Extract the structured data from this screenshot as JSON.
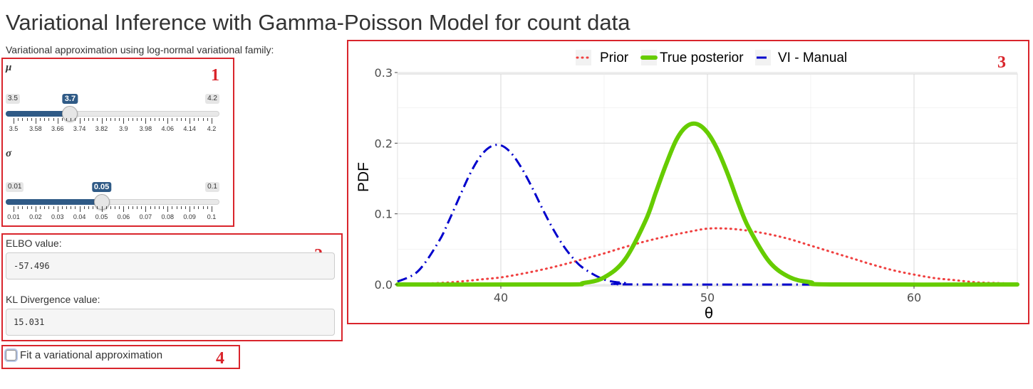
{
  "page": {
    "title": "Variational Inference with Gamma-Poisson Model for count data",
    "subtitle": "Variational approximation using log-normal variational family:"
  },
  "annotations": [
    "1",
    "2",
    "3",
    "4"
  ],
  "sliders": {
    "mu": {
      "label": "μ",
      "min": 3.5,
      "max": 4.2,
      "value": 3.7,
      "min_label": "3.5",
      "max_label": "4.2",
      "value_label": "3.7",
      "tick_labels": [
        "3.5",
        "3.58",
        "3.66",
        "3.74",
        "3.82",
        "3.9",
        "3.98",
        "4.06",
        "4.14",
        "4.2"
      ]
    },
    "sigma": {
      "label": "σ",
      "min": 0.01,
      "max": 0.1,
      "value": 0.05,
      "min_label": "0.01",
      "max_label": "0.1",
      "value_label": "0.05",
      "tick_labels": [
        "0.01",
        "0.02",
        "0.03",
        "0.04",
        "0.05",
        "0.06",
        "0.07",
        "0.08",
        "0.09",
        "0.1"
      ]
    }
  },
  "outputs": {
    "elbo_label": "ELBO value:",
    "elbo_value": "-57.496",
    "kl_label": "KL Divergence value:",
    "kl_value": "15.031"
  },
  "checkbox": {
    "label": "Fit a variational approximation",
    "checked": false
  },
  "chart_data": {
    "type": "line",
    "title": "",
    "xlabel": "θ",
    "ylabel": "PDF",
    "xlim": [
      35,
      65
    ],
    "ylim": [
      0,
      0.3
    ],
    "x_ticks": [
      40,
      50,
      60
    ],
    "y_ticks": [
      0.0,
      0.1,
      0.2,
      0.3
    ],
    "x_tick_labels": [
      "40",
      "50",
      "60"
    ],
    "y_tick_labels": [
      "0.0",
      "0.1",
      "0.2",
      "0.3"
    ],
    "grid": true,
    "legend_position": "top",
    "series": [
      {
        "name": "Prior",
        "color": "#f04040",
        "style": "dotted",
        "x": [
          35,
          36,
          37,
          38,
          39,
          40,
          41,
          42,
          43,
          44,
          45,
          46,
          47,
          48,
          49,
          50,
          51,
          52,
          53,
          54,
          55,
          56,
          57,
          58,
          59,
          60,
          61,
          62,
          63,
          64,
          65
        ],
        "y": [
          0.0,
          0.001,
          0.002,
          0.004,
          0.007,
          0.01,
          0.015,
          0.021,
          0.028,
          0.036,
          0.044,
          0.053,
          0.061,
          0.068,
          0.074,
          0.079,
          0.079,
          0.076,
          0.071,
          0.064,
          0.055,
          0.046,
          0.037,
          0.028,
          0.02,
          0.014,
          0.009,
          0.006,
          0.003,
          0.002,
          0.001
        ]
      },
      {
        "name": "True posterior",
        "color": "#66cc00",
        "style": "solid",
        "x": [
          35,
          43,
          44,
          45,
          46,
          47,
          47.5,
          48,
          48.5,
          49,
          49.5,
          50,
          50.5,
          51,
          51.5,
          52,
          53,
          54,
          55,
          56,
          65
        ],
        "y": [
          0.0,
          0.0,
          0.002,
          0.01,
          0.035,
          0.09,
          0.13,
          0.17,
          0.205,
          0.224,
          0.227,
          0.215,
          0.19,
          0.155,
          0.115,
          0.08,
          0.032,
          0.01,
          0.003,
          0.0,
          0.0
        ],
        "smooth": true
      },
      {
        "name": "VI - Manual",
        "color": "#0000cc",
        "style": "dashdot",
        "x": [
          35,
          36,
          37,
          37.5,
          38,
          38.5,
          39,
          39.5,
          40,
          40.5,
          41,
          41.5,
          42,
          42.5,
          43,
          43.5,
          44,
          45,
          46,
          47,
          65
        ],
        "y": [
          0.004,
          0.019,
          0.061,
          0.091,
          0.124,
          0.156,
          0.181,
          0.195,
          0.197,
          0.186,
          0.165,
          0.138,
          0.108,
          0.08,
          0.056,
          0.037,
          0.023,
          0.007,
          0.002,
          0.0,
          0.0
        ]
      }
    ]
  }
}
